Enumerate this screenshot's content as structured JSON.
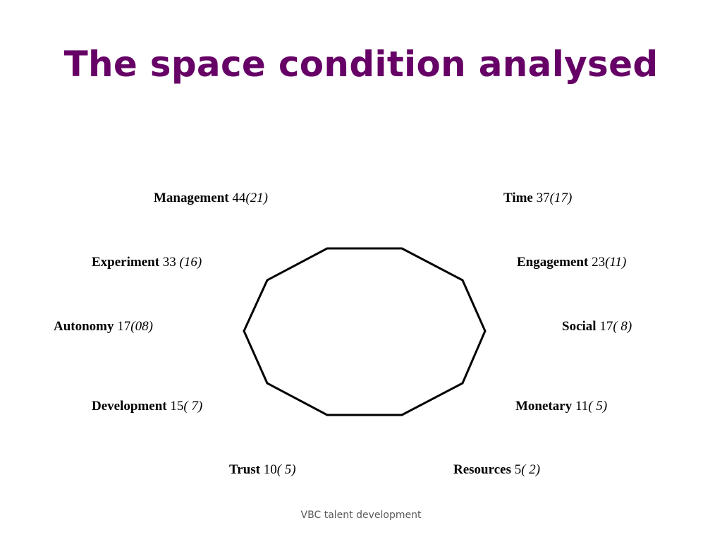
{
  "title": "The space condition analysed",
  "footer": "VBC talent development",
  "factors": [
    {
      "name": "Management",
      "count": "44",
      "paren": "(21)"
    },
    {
      "name": "Time",
      "count": "37",
      "paren": "(17)"
    },
    {
      "name": "Experiment",
      "count": "33",
      "paren": "(16)"
    },
    {
      "name": "Engagement",
      "count": "23",
      "paren": "(11)"
    },
    {
      "name": "Autonomy",
      "count": "17",
      "paren": "(08)"
    },
    {
      "name": "Social",
      "count": "17",
      "paren": "( 8)"
    },
    {
      "name": "Development",
      "count": "15",
      "paren": "( 7)"
    },
    {
      "name": "Monetary",
      "count": "11",
      "paren": "( 5)"
    },
    {
      "name": "Trust",
      "count": "10",
      "paren": "( 5)"
    },
    {
      "name": "Resources",
      "count": "5",
      "paren": "( 2)"
    }
  ]
}
